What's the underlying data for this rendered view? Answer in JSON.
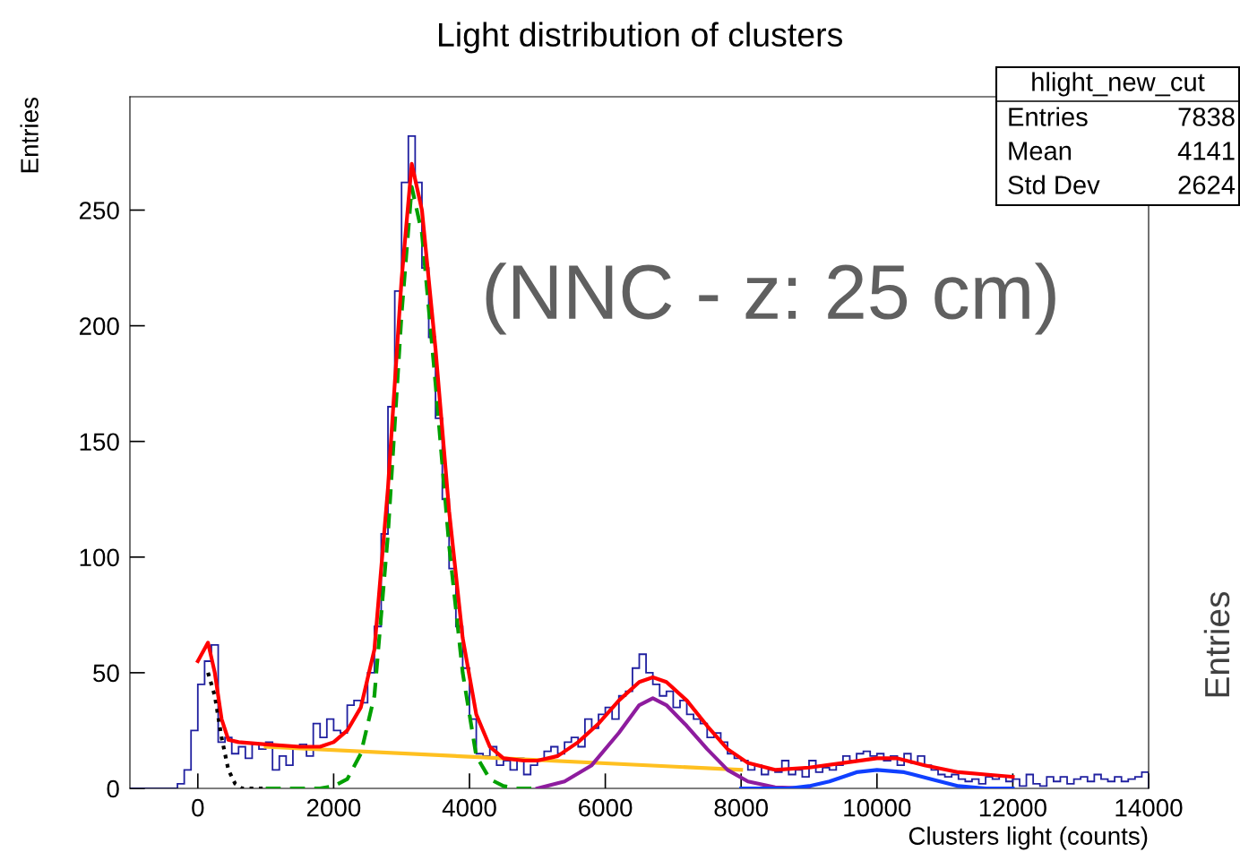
{
  "chart_data": {
    "type": "histogram",
    "title": "Light distribution of clusters",
    "xlabel": "Clusters light (counts)",
    "ylabel": "Entries",
    "bins": [
      -1000,
      -900,
      -800,
      -700,
      -600,
      -500,
      -400,
      -300,
      -200,
      -100,
      0,
      100,
      200,
      300,
      400,
      500,
      600,
      700,
      800,
      900,
      1000,
      1100,
      1200,
      1300,
      1400,
      1500,
      1600,
      1700,
      1800,
      1900,
      2000,
      2100,
      2200,
      2300,
      2400,
      2500,
      2600,
      2700,
      2800,
      2900,
      3000,
      3100,
      3200,
      3300,
      3400,
      3500,
      3600,
      3700,
      3800,
      3900,
      4000,
      4100,
      4200,
      4300,
      4400,
      4500,
      4600,
      4700,
      4800,
      4900,
      5000,
      5100,
      5200,
      5300,
      5400,
      5500,
      5600,
      5700,
      5800,
      5900,
      6000,
      6100,
      6200,
      6300,
      6400,
      6500,
      6600,
      6700,
      6800,
      6900,
      7000,
      7100,
      7200,
      7300,
      7400,
      7500,
      7600,
      7700,
      7800,
      7900,
      8000,
      8100,
      8200,
      8300,
      8400,
      8500,
      8600,
      8700,
      8800,
      8900,
      9000,
      9100,
      9200,
      9300,
      9400,
      9500,
      9600,
      9700,
      9800,
      9900,
      10000,
      10100,
      10200,
      10300,
      10400,
      10500,
      10600,
      10700,
      10800,
      10900,
      11000,
      11100,
      11200,
      11300,
      11400,
      11500,
      11600,
      11700,
      11800,
      11900,
      12000,
      12100,
      12200,
      12300,
      12400,
      12500,
      12600,
      12700,
      12800,
      12900,
      13000,
      13100,
      13200,
      13300,
      13400,
      13500,
      13600,
      13700,
      13800,
      13900,
      14000
    ],
    "values": [
      0,
      0,
      0,
      0,
      0,
      0,
      0,
      2,
      8,
      25,
      45,
      55,
      62,
      20,
      22,
      15,
      18,
      13,
      19,
      17,
      20,
      8,
      14,
      10,
      18,
      19,
      14,
      28,
      22,
      30,
      25,
      24,
      36,
      38,
      37,
      50,
      70,
      110,
      165,
      215,
      262,
      282,
      262,
      225,
      195,
      160,
      125,
      95,
      70,
      52,
      30,
      15,
      14,
      18,
      10,
      12,
      8,
      13,
      6,
      10,
      12,
      16,
      18,
      15,
      20,
      22,
      18,
      30,
      26,
      32,
      35,
      30,
      40,
      42,
      52,
      58,
      50,
      45,
      40,
      42,
      35,
      38,
      32,
      30,
      28,
      22,
      24,
      20,
      15,
      13,
      12,
      8,
      10,
      6,
      8,
      7,
      12,
      6,
      8,
      5,
      12,
      7,
      9,
      8,
      10,
      14,
      12,
      15,
      16,
      14,
      15,
      12,
      14,
      10,
      15,
      11,
      14,
      10,
      8,
      6,
      5,
      6,
      4,
      3,
      4,
      2,
      5,
      4,
      5,
      3,
      4,
      1,
      6,
      2,
      1,
      5,
      3,
      5,
      2,
      4,
      5,
      3,
      6,
      4,
      3,
      5,
      3,
      4,
      5,
      7
    ],
    "color": "#2020a0",
    "series": [
      {
        "type": "line",
        "color": "#ffc020",
        "line_style": "solid",
        "x": [
          1000,
          8000
        ],
        "values": [
          18,
          8
        ]
      },
      {
        "type": "line",
        "color": "#000000",
        "line_style": "dotted",
        "x": [
          150,
          250,
          350,
          450,
          550,
          650,
          1000
        ],
        "values": [
          50,
          40,
          22,
          8,
          2,
          0,
          0
        ]
      },
      {
        "type": "line",
        "color": "#00a000",
        "line_style": "dashed",
        "x": [
          1000,
          1800,
          2000,
          2200,
          2400,
          2600,
          2800,
          3000,
          3150,
          3300,
          3500,
          3700,
          3900,
          4100,
          4300,
          4500,
          4700,
          5000
        ],
        "values": [
          0,
          0,
          1,
          4,
          15,
          40,
          110,
          205,
          260,
          240,
          175,
          105,
          50,
          14,
          4,
          1,
          0,
          0
        ]
      },
      {
        "type": "line",
        "color": "#8e1c9e",
        "line_style": "solid",
        "x": [
          5000,
          5400,
          5800,
          6200,
          6500,
          6700,
          6900,
          7200,
          7500,
          7800,
          8100,
          8500,
          9000
        ],
        "values": [
          0,
          3,
          10,
          24,
          36,
          39,
          36,
          27,
          17,
          8,
          3,
          0.5,
          0
        ]
      },
      {
        "type": "line",
        "color": "#1040ff",
        "line_style": "solid",
        "x": [
          8000,
          8700,
          9000,
          9300,
          9700,
          10000,
          10400,
          10800,
          11200,
          11600,
          12000
        ],
        "values": [
          0,
          0,
          1,
          3,
          7,
          8,
          7,
          4,
          1,
          0,
          0
        ]
      },
      {
        "type": "line",
        "color": "#ff0000",
        "line_style": "solid",
        "x": [
          0,
          150,
          250,
          350,
          450,
          600,
          1000,
          1500,
          1800,
          2000,
          2200,
          2400,
          2600,
          2800,
          3000,
          3150,
          3300,
          3500,
          3700,
          3900,
          4100,
          4300,
          4500,
          4800,
          5000,
          5300,
          5600,
          5900,
          6200,
          6500,
          6700,
          6900,
          7200,
          7500,
          7800,
          8100,
          8500,
          9000,
          9500,
          10000,
          10300,
          10700,
          11200,
          11600,
          12000
        ],
        "values": [
          55,
          63,
          50,
          30,
          21,
          20,
          19,
          18,
          18,
          20,
          25,
          35,
          60,
          130,
          220,
          270,
          250,
          190,
          120,
          65,
          32,
          18,
          13,
          12,
          12,
          14,
          20,
          28,
          38,
          46,
          48,
          46,
          38,
          27,
          17,
          11,
          8,
          9,
          11,
          13,
          13,
          10,
          7,
          6,
          5
        ]
      }
    ],
    "xlim": [
      -1000,
      14000
    ],
    "xticks": [
      0,
      2000,
      4000,
      6000,
      8000,
      10000,
      12000,
      14000
    ],
    "ylim": [
      0,
      299
    ],
    "yticks": [
      0,
      50,
      100,
      150,
      200,
      250
    ],
    "grid": false,
    "legend": false,
    "annotations": [
      "(NNC - z: 25 cm)",
      "hlight_new_cut",
      "Entries",
      "7838",
      "Mean",
      "4141",
      "Std Dev",
      "2624",
      "Entries"
    ]
  }
}
